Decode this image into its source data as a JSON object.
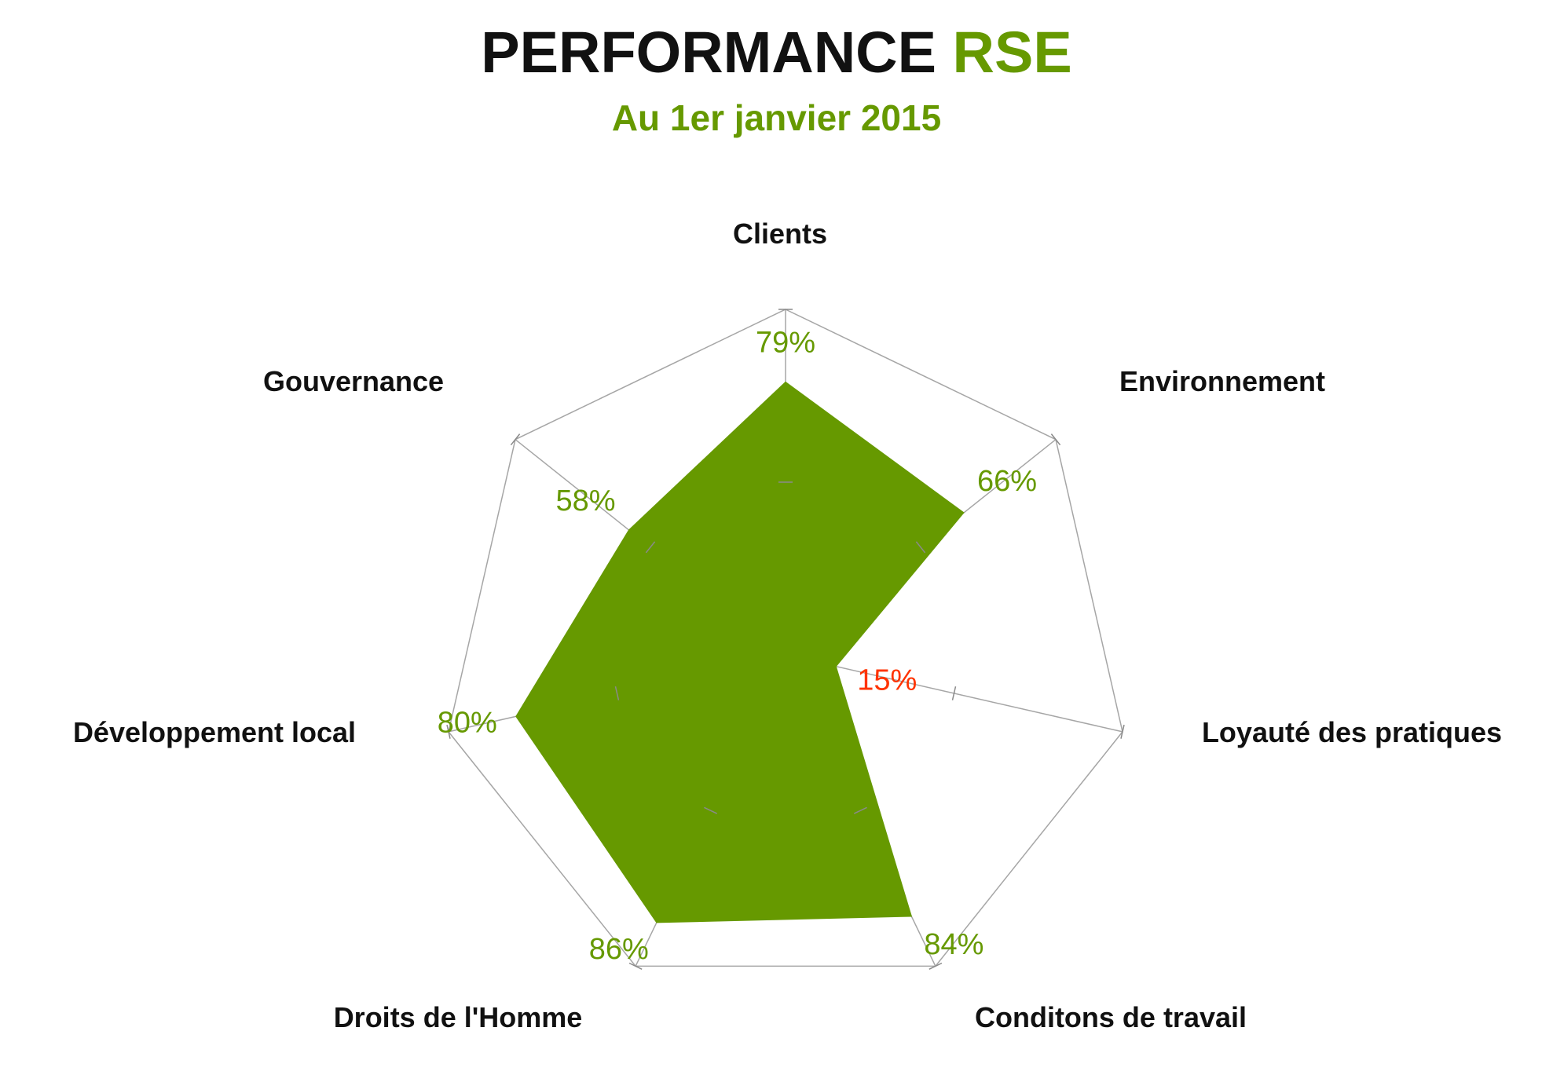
{
  "header": {
    "title_main": "PERFORMANCE",
    "title_accent": "RSE",
    "subtitle": "Au 1er janvier 2015"
  },
  "chart_data": {
    "type": "radar",
    "title": "PERFORMANCE RSE",
    "subtitle": "Au 1er janvier 2015",
    "categories": [
      "Clients",
      "Environnement",
      "Loyauté des pratiques",
      "Conditons de travail",
      "Droits de l'Homme",
      "Développement local",
      "Gouvernance"
    ],
    "series": [
      {
        "values": [
          79,
          66,
          15,
          84,
          86,
          80,
          58
        ]
      }
    ],
    "data_labels": [
      "79%",
      "66%",
      "15%",
      "84%",
      "86%",
      "80%",
      "58%"
    ],
    "rlim": [
      0,
      100
    ],
    "colors": {
      "fill": "#669900",
      "label": "#669900",
      "low_label": "#FF3300",
      "grid": "#A6A6A6"
    }
  }
}
